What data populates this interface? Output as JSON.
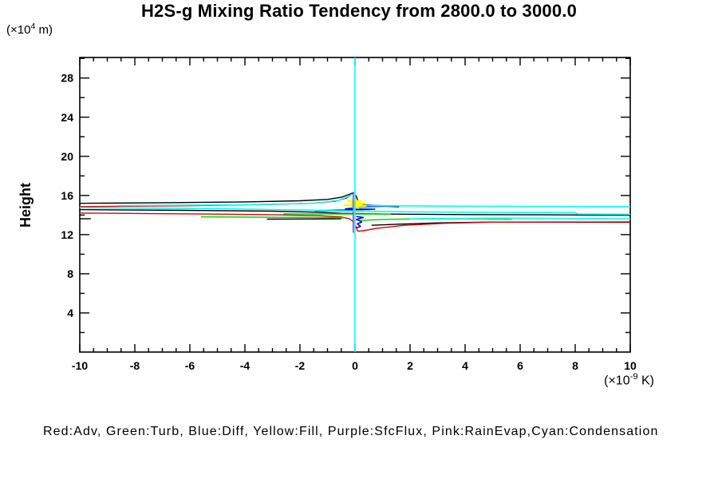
{
  "header": {
    "title": "H2S-g Mixing Ratio Tendency from 2800.0 to 3000.0"
  },
  "labels": {
    "y_units_pre": "(×10",
    "y_units_sup": "4",
    "y_units_post": " m)",
    "x_units_pre": "(×10",
    "x_units_sup": "-9",
    "x_units_post": " K)",
    "y_axis_title": "Height"
  },
  "legend": {
    "text": "Red:Adv, Green:Turb, Blue:Diff, Yellow:Fill, Purple:SfcFlux, Pink:RainEvap,Cyan:Condensation"
  },
  "chart_data": {
    "type": "line",
    "title": "H2S-g Mixing Ratio Tendency from 2800.0 to 3000.0",
    "xlabel": "(×10⁻⁹ K)",
    "ylabel": "Height (×10⁴ m)",
    "x_range": [
      -10,
      10
    ],
    "y_range": [
      0,
      30.1
    ],
    "x_major_ticks": [
      -10,
      -8,
      -6,
      -4,
      -2,
      0,
      2,
      4,
      6,
      8,
      10
    ],
    "x_minor_step": 0.5,
    "y_major_ticks": [
      4,
      8,
      12,
      16,
      20,
      24,
      28
    ],
    "y_minor_step": 2,
    "grid": false,
    "legend_position": "bottom-text-line",
    "frame": "box-with-mirrored-inward-ticks",
    "legend_mapping": {
      "red": "Adv",
      "green": "Turb",
      "blue": "Diff",
      "yellow": "Fill",
      "purple": "SfcFlux",
      "pink": "RainEvap",
      "cyan": "Condensation"
    },
    "series": [
      {
        "name": "black-unlabeled",
        "legend_label": "",
        "color": "#000000",
        "width": 1.4,
        "segments": [
          [
            [
              -10,
              15.2
            ],
            [
              -7,
              15.26
            ],
            [
              -4,
              15.34
            ],
            [
              -2,
              15.46
            ],
            [
              -1,
              15.6
            ],
            [
              -0.5,
              15.82
            ],
            [
              -0.2,
              16.12
            ],
            [
              -0.05,
              16.3
            ],
            [
              0.05,
              15.9
            ],
            [
              0.12,
              15.3
            ],
            [
              0.3,
              15.05
            ],
            [
              0.9,
              14.92
            ],
            [
              1.6,
              14.85
            ]
          ],
          [
            [
              -10,
              14.55
            ],
            [
              -6,
              14.48
            ],
            [
              -3,
              14.4
            ],
            [
              -1.5,
              14.3
            ],
            [
              -0.5,
              14.18
            ],
            [
              1,
              14.1
            ],
            [
              4,
              14.05
            ],
            [
              7,
              14.02
            ],
            [
              10,
              13.98
            ]
          ],
          [
            [
              0.6,
              12.95
            ],
            [
              1.5,
              13.06
            ],
            [
              3,
              13.2
            ],
            [
              5,
              13.28
            ],
            [
              10,
              13.26
            ]
          ],
          [
            [
              -3.2,
              13.58
            ],
            [
              -1.5,
              13.6
            ],
            [
              -0.5,
              13.62
            ]
          ],
          [
            [
              -10,
              13.62
            ],
            [
              -9.6,
              13.62
            ]
          ]
        ]
      },
      {
        "name": "Adv",
        "legend_label": "Red:Adv",
        "color": "#dd0000",
        "width": 1.4,
        "segments": [
          [
            [
              -10,
              14.86
            ],
            [
              -6,
              14.95
            ],
            [
              -3,
              15.08
            ],
            [
              -1.5,
              15.22
            ],
            [
              -0.7,
              15.42
            ],
            [
              -0.3,
              15.75
            ],
            [
              -0.12,
              16.1
            ]
          ],
          [
            [
              -10,
              14.2
            ],
            [
              -6,
              14.12
            ],
            [
              -3,
              14.04
            ],
            [
              -1.3,
              13.93
            ],
            [
              -0.5,
              13.8
            ],
            [
              -0.2,
              13.62
            ],
            [
              -0.05,
              13.3
            ],
            [
              0.02,
              12.9
            ],
            [
              0.1,
              12.35
            ],
            [
              0.3,
              12.4
            ],
            [
              0.8,
              12.65
            ],
            [
              1.8,
              12.95
            ],
            [
              3.2,
              13.15
            ],
            [
              5,
              13.28
            ],
            [
              10,
              13.3
            ]
          ]
        ]
      },
      {
        "name": "Turb",
        "legend_label": "Green:Turb",
        "color": "#00dd00",
        "width": 1.5,
        "segments": [
          [
            [
              -5.6,
              13.82
            ],
            [
              -3,
              13.78
            ],
            [
              -1,
              13.74
            ],
            [
              -0.4,
              13.7
            ]
          ],
          [
            [
              0.15,
              13.45
            ],
            [
              1,
              13.55
            ],
            [
              2.5,
              13.62
            ],
            [
              4,
              13.62
            ],
            [
              5.7,
              13.58
            ]
          ],
          [
            [
              -0.45,
              14.42
            ],
            [
              0.55,
              14.42
            ]
          ],
          [
            [
              -2.6,
              14.12
            ],
            [
              1.3,
              14.1
            ]
          ]
        ]
      },
      {
        "name": "Diff",
        "legend_label": "Blue:Diff",
        "color": "#0000ff",
        "width": 1.5,
        "segments": [
          [
            [
              0,
              15.0
            ],
            [
              1.6,
              14.93
            ],
            [
              0.3,
              14.85
            ],
            [
              -0.35,
              14.63
            ],
            [
              0.72,
              14.6
            ],
            [
              -1.45,
              14.45
            ],
            [
              0.3,
              14.4
            ]
          ],
          [
            [
              0.05,
              13.85
            ],
            [
              0.3,
              13.75
            ],
            [
              0.05,
              13.55
            ],
            [
              0.25,
              13.3
            ],
            [
              0.08,
              13.1
            ],
            [
              0.2,
              12.85
            ],
            [
              0.05,
              12.68
            ]
          ]
        ]
      },
      {
        "name": "Fill",
        "legend_label": "Yellow:Fill",
        "color": "#ffff00",
        "width": 2.4,
        "segments": [
          [
            [
              -0.28,
              15.45
            ],
            [
              0.22,
              15.42
            ],
            [
              -0.12,
              15.28
            ],
            [
              0.35,
              15.2
            ],
            [
              -0.38,
              15.0
            ],
            [
              0.42,
              14.95
            ],
            [
              -0.1,
              14.82
            ],
            [
              0.15,
              14.72
            ]
          ]
        ]
      },
      {
        "name": "SfcFlux",
        "legend_label": "Purple:SfcFlux",
        "color": "#9b30d0",
        "width": 1.2,
        "segments": [
          [
            [
              -0.07,
              12.2
            ],
            [
              -0.07,
              16.3
            ]
          ]
        ]
      },
      {
        "name": "RainEvap",
        "legend_label": "Pink:RainEvap",
        "color": "#ff80c0",
        "width": 1.2,
        "segments": [
          [
            [
              -0.035,
              12.1
            ],
            [
              -0.035,
              16.35
            ]
          ]
        ]
      },
      {
        "name": "Condensation",
        "legend_label": "Cyan:Condensation",
        "color": "#00ffff",
        "width": 1.6,
        "segments": [
          [
            [
              0,
              0
            ],
            [
              0,
              30.1
            ]
          ],
          [
            [
              -8.6,
              14.97
            ],
            [
              -4,
              15.05
            ],
            [
              -1.5,
              15.2
            ],
            [
              -0.6,
              15.5
            ],
            [
              -0.25,
              15.9
            ],
            [
              -0.1,
              16.15
            ]
          ],
          [
            [
              -10,
              14.76
            ],
            [
              -5,
              14.66
            ],
            [
              -2,
              14.52
            ],
            [
              -0.5,
              14.45
            ],
            [
              0.6,
              14.38
            ],
            [
              3,
              14.3
            ],
            [
              8,
              14.24
            ],
            [
              8.1,
              14.1
            ],
            [
              10,
              14.08
            ]
          ],
          [
            [
              0.4,
              14.95
            ],
            [
              4,
              14.9
            ],
            [
              10,
              14.87
            ]
          ],
          [
            [
              2,
              13.6
            ],
            [
              5,
              13.68
            ],
            [
              7.5,
              13.66
            ],
            [
              10,
              13.6
            ]
          ]
        ]
      }
    ]
  }
}
